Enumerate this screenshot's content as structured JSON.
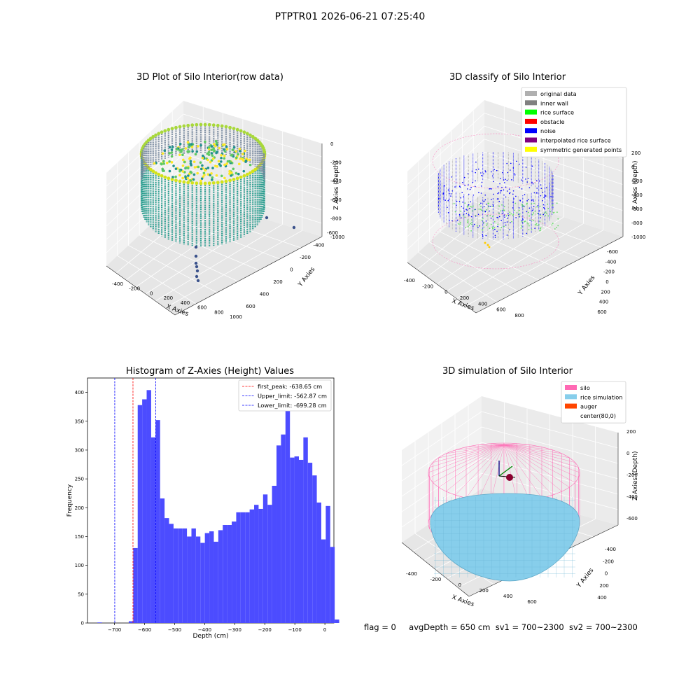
{
  "figure": {
    "title": "PTPTR01 2026-06-21 07:25:40",
    "footer": {
      "flag": "flag = 0",
      "avg_depth": "avgDepth = 650 cm",
      "sv1": "sv1 = 700~2300",
      "sv2": "sv2 = 700~2300"
    }
  },
  "chart_data": [
    {
      "type": "scatter",
      "panel": "3d-raw",
      "title": "3D Plot of Silo Interior(row data)",
      "xlabel": "X Axies",
      "ylabel": "Y Axies",
      "zlabel": "Z Axies (Depth)",
      "x_ticks": [
        "-400",
        "-200",
        "0",
        "200",
        "400",
        "600",
        "800",
        "1000"
      ],
      "y_ticks": [
        "-600",
        "-400",
        "-200",
        "0",
        "200",
        "400",
        "600"
      ],
      "z_ticks": [
        "0",
        "-200",
        "-400",
        "-600",
        "-800",
        "-1000"
      ],
      "colormap": "viridis",
      "grid": true
    },
    {
      "type": "scatter",
      "panel": "3d-classify",
      "title": "3D classify of Silo Interior",
      "xlabel": "X Axies",
      "ylabel": "Y Axies",
      "zlabel": "Z Axies (Depth)",
      "x_ticks": [
        "-400",
        "-200",
        "0",
        "200",
        "400",
        "600",
        "800"
      ],
      "y_ticks": [
        "-600",
        "-400",
        "-200",
        "0",
        "200",
        "400",
        "600"
      ],
      "z_ticks": [
        "200",
        "0",
        "-200",
        "-400",
        "-600",
        "-800",
        "-1000"
      ],
      "legend_position": "top-right",
      "legend": [
        {
          "label": "original data",
          "color": "#b0b0b0"
        },
        {
          "label": "inner wall",
          "color": "#808080"
        },
        {
          "label": "rice surface",
          "color": "#00ff00"
        },
        {
          "label": "obstacle",
          "color": "#ff0000"
        },
        {
          "label": "noise",
          "color": "#0000ff"
        },
        {
          "label": "interpolated rice surface",
          "color": "#800080"
        },
        {
          "label": "symmetric generated points",
          "color": "#ffff00"
        }
      ],
      "grid": true
    },
    {
      "type": "bar",
      "panel": "histogram",
      "title": "Histogram of Z-Axies (Height) Values",
      "xlabel": "Depth (cm)",
      "ylabel": "Frequency",
      "bar_color": "#4c4cff",
      "xlim": [
        -790,
        30
      ],
      "ylim": [
        0,
        425
      ],
      "x_ticks": [
        -700,
        -600,
        -500,
        -400,
        -300,
        -200,
        -100,
        0
      ],
      "y_ticks": [
        0,
        50,
        100,
        150,
        200,
        250,
        300,
        350,
        400
      ],
      "bin_start": -757,
      "bin_width": 14.9,
      "values": [
        1,
        0,
        0,
        0,
        0,
        0,
        0,
        3,
        130,
        378,
        388,
        404,
        322,
        352,
        216,
        182,
        172,
        164,
        164,
        164,
        150,
        164,
        150,
        139,
        156,
        159,
        141,
        161,
        170,
        170,
        176,
        192,
        192,
        192,
        197,
        205,
        198,
        223,
        205,
        238,
        308,
        327,
        387,
        287,
        289,
        283,
        322,
        278,
        256,
        209,
        145,
        203,
        132,
        6
      ],
      "reference_lines": [
        {
          "label": "first_peak: -638.65 cm",
          "x": -638.65,
          "color": "#ff0000"
        },
        {
          "label": "Upper_limit: -562.87 cm",
          "x": -562.87,
          "color": "#0000ff"
        },
        {
          "label": "Lower_limit: -699.28 cm",
          "x": -699.28,
          "color": "#0000ff"
        }
      ],
      "legend_position": "top-right"
    },
    {
      "type": "scatter",
      "panel": "3d-simulation",
      "title": "3D simulation of Silo Interior",
      "xlabel": "X Axies",
      "ylabel": "Y Axies",
      "zlabel": "Z Axies (Depth)",
      "x_ticks": [
        "-400",
        "-200",
        "0",
        "200",
        "400",
        "600"
      ],
      "y_ticks": [
        "-400",
        "-200",
        "0",
        "200",
        "400"
      ],
      "z_ticks": [
        "200",
        "0",
        "-200",
        "-400",
        "-600"
      ],
      "legend_position": "top-right",
      "legend": [
        {
          "label": "silo",
          "color": "#ff69b4"
        },
        {
          "label": "rice simulation",
          "color": "#87ceeb"
        },
        {
          "label": "auger",
          "color": "#ff4500"
        },
        {
          "label": "center(80,0)",
          "color": "#ffffff"
        }
      ],
      "grid": true
    }
  ]
}
